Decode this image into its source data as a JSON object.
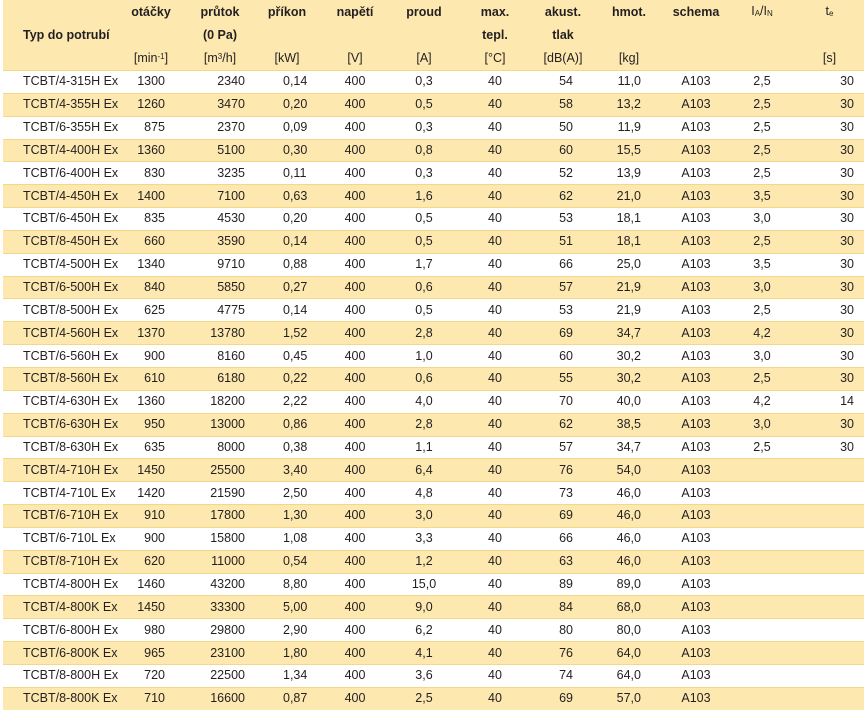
{
  "header": {
    "row1": {
      "otacky": "otáčky",
      "prutok": "průtok",
      "prikon": "příkon",
      "napeti": "napětí",
      "proud": "proud",
      "maxtepl": "max.",
      "akust": "akust.",
      "hmot": "hmot.",
      "schema": "schema",
      "ia_in": "IA/IN",
      "te": "te"
    },
    "row2": {
      "typ": "Typ do potrubí",
      "prutok2": "(0 Pa)",
      "maxtepl2": "tepl.",
      "akust2": "tlak"
    },
    "units": {
      "otacky": "[min-1]",
      "prutok": "[m3/h]",
      "prikon": "[kW]",
      "napeti": "[V]",
      "proud": "[A]",
      "maxtepl": "[°C]",
      "akust": "[dB(A)]",
      "hmot": "[kg]",
      "te": "[s]"
    }
  },
  "rows": [
    [
      "TCBT/4-315H Ex",
      "1300",
      "2340",
      "0,14",
      "400",
      "0,3",
      "40",
      "54",
      "11,0",
      "A103",
      "2,5",
      "30"
    ],
    [
      "TCBT/4-355H Ex",
      "1260",
      "3470",
      "0,20",
      "400",
      "0,5",
      "40",
      "58",
      "13,2",
      "A103",
      "2,5",
      "30"
    ],
    [
      "TCBT/6-355H Ex",
      "875",
      "2370",
      "0,09",
      "400",
      "0,3",
      "40",
      "50",
      "11,9",
      "A103",
      "2,5",
      "30"
    ],
    [
      "TCBT/4-400H Ex",
      "1360",
      "5100",
      "0,30",
      "400",
      "0,8",
      "40",
      "60",
      "15,5",
      "A103",
      "2,5",
      "30"
    ],
    [
      "TCBT/6-400H Ex",
      "830",
      "3235",
      "0,11",
      "400",
      "0,3",
      "40",
      "52",
      "13,9",
      "A103",
      "2,5",
      "30"
    ],
    [
      "TCBT/4-450H Ex",
      "1400",
      "7100",
      "0,63",
      "400",
      "1,6",
      "40",
      "62",
      "21,0",
      "A103",
      "3,5",
      "30"
    ],
    [
      "TCBT/6-450H Ex",
      "835",
      "4530",
      "0,20",
      "400",
      "0,5",
      "40",
      "53",
      "18,1",
      "A103",
      "3,0",
      "30"
    ],
    [
      "TCBT/8-450H Ex",
      "660",
      "3590",
      "0,14",
      "400",
      "0,5",
      "40",
      "51",
      "18,1",
      "A103",
      "2,5",
      "30"
    ],
    [
      "TCBT/4-500H Ex",
      "1340",
      "9710",
      "0,88",
      "400",
      "1,7",
      "40",
      "66",
      "25,0",
      "A103",
      "3,5",
      "30"
    ],
    [
      "TCBT/6-500H Ex",
      "840",
      "5850",
      "0,27",
      "400",
      "0,6",
      "40",
      "57",
      "21,9",
      "A103",
      "3,0",
      "30"
    ],
    [
      "TCBT/8-500H Ex",
      "625",
      "4775",
      "0,14",
      "400",
      "0,5",
      "40",
      "53",
      "21,9",
      "A103",
      "2,5",
      "30"
    ],
    [
      "TCBT/4-560H Ex",
      "1370",
      "13780",
      "1,52",
      "400",
      "2,8",
      "40",
      "69",
      "34,7",
      "A103",
      "4,2",
      "30"
    ],
    [
      "TCBT/6-560H Ex",
      "900",
      "8160",
      "0,45",
      "400",
      "1,0",
      "40",
      "60",
      "30,2",
      "A103",
      "3,0",
      "30"
    ],
    [
      "TCBT/8-560H Ex",
      "610",
      "6180",
      "0,22",
      "400",
      "0,6",
      "40",
      "55",
      "30,2",
      "A103",
      "2,5",
      "30"
    ],
    [
      "TCBT/4-630H Ex",
      "1360",
      "18200",
      "2,22",
      "400",
      "4,0",
      "40",
      "70",
      "40,0",
      "A103",
      "4,2",
      "14"
    ],
    [
      "TCBT/6-630H Ex",
      "950",
      "13000",
      "0,86",
      "400",
      "2,8",
      "40",
      "62",
      "38,5",
      "A103",
      "3,0",
      "30"
    ],
    [
      "TCBT/8-630H Ex",
      "635",
      "8000",
      "0,38",
      "400",
      "1,1",
      "40",
      "57",
      "34,7",
      "A103",
      "2,5",
      "30"
    ],
    [
      "TCBT/4-710H Ex",
      "1450",
      "25500",
      "3,40",
      "400",
      "6,4",
      "40",
      "76",
      "54,0",
      "A103",
      "",
      ""
    ],
    [
      "TCBT/4-710L Ex",
      "1420",
      "21590",
      "2,50",
      "400",
      "4,8",
      "40",
      "73",
      "46,0",
      "A103",
      "",
      ""
    ],
    [
      "TCBT/6-710H Ex",
      "910",
      "17800",
      "1,30",
      "400",
      "3,0",
      "40",
      "69",
      "46,0",
      "A103",
      "",
      ""
    ],
    [
      "TCBT/6-710L Ex",
      "900",
      "15800",
      "1,08",
      "400",
      "3,3",
      "40",
      "66",
      "46,0",
      "A103",
      "",
      ""
    ],
    [
      "TCBT/8-710H Ex",
      "620",
      "11000",
      "0,54",
      "400",
      "1,2",
      "40",
      "63",
      "46,0",
      "A103",
      "",
      ""
    ],
    [
      "TCBT/4-800H Ex",
      "1460",
      "43200",
      "8,80",
      "400",
      "15,0",
      "40",
      "89",
      "89,0",
      "A103",
      "",
      ""
    ],
    [
      "TCBT/4-800K Ex",
      "1450",
      "33300",
      "5,00",
      "400",
      "9,0",
      "40",
      "84",
      "68,0",
      "A103",
      "",
      ""
    ],
    [
      "TCBT/6-800H Ex",
      "980",
      "29800",
      "2,90",
      "400",
      "6,2",
      "40",
      "80",
      "80,0",
      "A103",
      "",
      ""
    ],
    [
      "TCBT/6-800K Ex",
      "965",
      "23100",
      "1,80",
      "400",
      "4,1",
      "40",
      "76",
      "64,0",
      "A103",
      "",
      ""
    ],
    [
      "TCBT/8-800H Ex",
      "720",
      "22500",
      "1,34",
      "400",
      "3,6",
      "40",
      "74",
      "64,0",
      "A103",
      "",
      ""
    ],
    [
      "TCBT/8-800K Ex",
      "710",
      "16600",
      "0,87",
      "400",
      "2,5",
      "40",
      "69",
      "57,0",
      "A103",
      "",
      ""
    ]
  ]
}
